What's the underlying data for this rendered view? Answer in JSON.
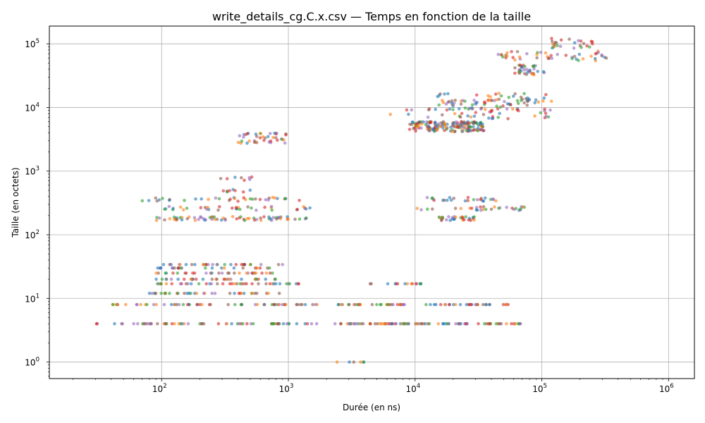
{
  "chart_data": {
    "type": "scatter",
    "title": "write_details_cg.C.x.csv — Temps en fonction de la taille",
    "xlabel": "Durée (en ns)",
    "ylabel": "Taille (en octets)",
    "xscale": "log",
    "yscale": "log",
    "xlim": [
      13,
      1600000
    ],
    "ylim": [
      0.55,
      190000
    ],
    "grid": true,
    "x_ticks": [
      {
        "value": 100,
        "base": "10",
        "exp": "2"
      },
      {
        "value": 1000,
        "base": "10",
        "exp": "3"
      },
      {
        "value": 10000,
        "base": "10",
        "exp": "4"
      },
      {
        "value": 100000,
        "base": "10",
        "exp": "5"
      },
      {
        "value": 1000000,
        "base": "10",
        "exp": "6"
      }
    ],
    "y_ticks": [
      {
        "value": 1,
        "base": "10",
        "exp": "0"
      },
      {
        "value": 10,
        "base": "10",
        "exp": "1"
      },
      {
        "value": 100,
        "base": "10",
        "exp": "2"
      },
      {
        "value": 1000,
        "base": "10",
        "exp": "3"
      },
      {
        "value": 10000,
        "base": "10",
        "exp": "4"
      },
      {
        "value": 100000,
        "base": "10",
        "exp": "5"
      }
    ],
    "series_colors": [
      "#1f77b4",
      "#ff7f0e",
      "#2ca02c",
      "#d62728",
      "#9467bd",
      "#8c564b"
    ],
    "point_clusters": [
      {
        "x_range": [
          30,
          1700
        ],
        "y": 4,
        "n": 60
      },
      {
        "x_range": [
          2200,
          9000
        ],
        "y": 4,
        "n": 40
      },
      {
        "x_range": [
          10000,
          70000
        ],
        "y": 4,
        "n": 45
      },
      {
        "x_range": [
          40,
          1700
        ],
        "y": 8,
        "n": 55
      },
      {
        "x_range": [
          2200,
          9000
        ],
        "y": 8,
        "n": 30
      },
      {
        "x_range": [
          12000,
          60000
        ],
        "y": 8,
        "n": 30
      },
      {
        "x_range": [
          80,
          1000
        ],
        "y": 12,
        "n": 35
      },
      {
        "x_range": [
          80,
          1300
        ],
        "y": 17,
        "n": 40
      },
      {
        "x_range": [
          4000,
          12000
        ],
        "y": 17,
        "n": 15
      },
      {
        "x_range": [
          90,
          900
        ],
        "y": 20,
        "n": 30
      },
      {
        "x_range": [
          90,
          800
        ],
        "y": 25,
        "n": 30
      },
      {
        "x_range": [
          90,
          800
        ],
        "y": 30,
        "n": 25
      },
      {
        "x_range": [
          90,
          900
        ],
        "y": 34,
        "n": 30
      },
      {
        "x_range": [
          90,
          1400
        ],
        "y": 180,
        "n": 70
      },
      {
        "x_range": [
          15000,
          30000
        ],
        "y": 180,
        "n": 30
      },
      {
        "x_range": [
          100,
          1600
        ],
        "y": 260,
        "n": 35
      },
      {
        "x_range": [
          10000,
          90000
        ],
        "y": 260,
        "n": 30
      },
      {
        "x_range": [
          70,
          1300
        ],
        "y": 360,
        "n": 35
      },
      {
        "x_range": [
          12000,
          50000
        ],
        "y": 360,
        "n": 25
      },
      {
        "x_range": [
          300,
          500
        ],
        "y": 500,
        "n": 8
      },
      {
        "x_range": [
          280,
          600
        ],
        "y": 760,
        "n": 8
      },
      {
        "x_range": [
          400,
          1000
        ],
        "y": 3300,
        "n": 40
      },
      {
        "x_range": [
          9000,
          35000
        ],
        "y": 5000,
        "n": 160
      },
      {
        "x_range": [
          6000,
          120000
        ],
        "y": 8000,
        "n": 45
      },
      {
        "x_range": [
          15000,
          80000
        ],
        "y": 11000,
        "n": 40
      },
      {
        "x_range": [
          15000,
          120000
        ],
        "y": 14000,
        "n": 45
      },
      {
        "x_range": [
          60000,
          110000
        ],
        "y": 39000,
        "n": 35
      },
      {
        "x_range": [
          45000,
          350000
        ],
        "y": 64000,
        "n": 45
      },
      {
        "x_range": [
          110000,
          260000
        ],
        "y": 102000,
        "n": 25
      },
      {
        "x_range": [
          2200,
          4500
        ],
        "y": 1,
        "n": 6
      }
    ]
  }
}
